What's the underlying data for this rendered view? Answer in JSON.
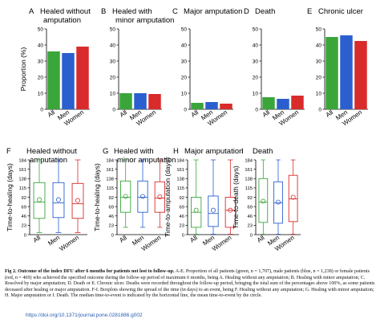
{
  "colors": {
    "all": "#3aa63a",
    "men": "#2b5fcf",
    "women": "#d92b2b"
  },
  "groups": [
    "All",
    "Men",
    "Women"
  ],
  "chart_data": [
    {
      "type": "bar",
      "letter": "A",
      "title": "Healed without amputation",
      "categories": [
        "All",
        "Men",
        "Women"
      ],
      "values": [
        36,
        35,
        39
      ],
      "ylabel": "Proportion (%)",
      "ylim": [
        0,
        50
      ],
      "yticks": [
        0,
        10,
        20,
        30,
        40,
        50
      ]
    },
    {
      "type": "bar",
      "letter": "B",
      "title": "Healed with minor amputation",
      "categories": [
        "All",
        "Men",
        "Women"
      ],
      "values": [
        10,
        10,
        9.5
      ],
      "ylabel": "",
      "ylim": [
        0,
        50
      ],
      "yticks": [
        0,
        10,
        20,
        30,
        40,
        50
      ]
    },
    {
      "type": "bar",
      "letter": "C",
      "title": "Major amputation",
      "categories": [
        "All",
        "Men",
        "Women"
      ],
      "values": [
        4,
        4.5,
        3.5
      ],
      "ylabel": "",
      "ylim": [
        0,
        50
      ],
      "yticks": [
        0,
        10,
        20,
        30,
        40,
        50
      ]
    },
    {
      "type": "bar",
      "letter": "D",
      "title": "Death",
      "categories": [
        "All",
        "Men",
        "Women"
      ],
      "values": [
        7.5,
        6.5,
        8.5
      ],
      "ylabel": "",
      "ylim": [
        0,
        50
      ],
      "yticks": [
        0,
        10,
        20,
        30,
        40,
        50
      ]
    },
    {
      "type": "bar",
      "letter": "E",
      "title": "Chronic ulcer",
      "categories": [
        "All",
        "Men",
        "Women"
      ],
      "values": [
        45,
        46,
        42.5
      ],
      "ylabel": "",
      "ylim": [
        0,
        50
      ],
      "yticks": [
        0,
        10,
        20,
        30,
        40,
        50
      ]
    },
    {
      "type": "box",
      "letter": "F",
      "title": "Healed without amputation",
      "categories": [
        "All",
        "Men",
        "Women"
      ],
      "ylabel": "Time-to-healing (days)",
      "ylim": [
        0,
        184
      ],
      "yticks": [
        0,
        23,
        46,
        69,
        92,
        115,
        138,
        161,
        184
      ],
      "boxes": [
        {
          "min": 5,
          "q1": 40,
          "median": 80,
          "q3": 128,
          "max": 184,
          "mean": 86
        },
        {
          "min": 5,
          "q1": 42,
          "median": 78,
          "q3": 128,
          "max": 184,
          "mean": 86
        },
        {
          "min": 5,
          "q1": 40,
          "median": 76,
          "q3": 126,
          "max": 184,
          "mean": 84
        }
      ]
    },
    {
      "type": "box",
      "letter": "G",
      "title": "Healed with minor amputation",
      "categories": [
        "All",
        "Men",
        "Women"
      ],
      "ylabel": "Time-to-healing (days)",
      "ylim": [
        0,
        184
      ],
      "yticks": [
        0,
        23,
        46,
        69,
        92,
        115,
        138,
        161,
        184
      ],
      "boxes": [
        {
          "min": 18,
          "q1": 55,
          "median": 92,
          "q3": 132,
          "max": 184,
          "mean": 94
        },
        {
          "min": 18,
          "q1": 55,
          "median": 92,
          "q3": 132,
          "max": 184,
          "mean": 94
        },
        {
          "min": 18,
          "q1": 55,
          "median": 90,
          "q3": 130,
          "max": 184,
          "mean": 93
        }
      ]
    },
    {
      "type": "box",
      "letter": "H",
      "title": "Major amputation",
      "categories": [
        "All",
        "Men",
        "Women"
      ],
      "ylabel": "Time-to-amputation (days)",
      "ylim": [
        0,
        184
      ],
      "yticks": [
        0,
        23,
        46,
        69,
        92,
        115,
        138,
        161,
        184
      ],
      "boxes": [
        {
          "min": 1,
          "q1": 18,
          "median": 55,
          "q3": 92,
          "max": 184,
          "mean": 60
        },
        {
          "min": 1,
          "q1": 20,
          "median": 52,
          "q3": 95,
          "max": 184,
          "mean": 60
        },
        {
          "min": 1,
          "q1": 18,
          "median": 60,
          "q3": 92,
          "max": 184,
          "mean": 60
        }
      ]
    },
    {
      "type": "box",
      "letter": "I",
      "title": "Death",
      "categories": [
        "All",
        "Men",
        "Women"
      ],
      "ylabel": "Time-to-death (days)",
      "ylim": [
        0,
        184
      ],
      "yticks": [
        0,
        23,
        46,
        69,
        92,
        115,
        138,
        161,
        184
      ],
      "boxes": [
        {
          "min": 1,
          "q1": 30,
          "median": 80,
          "q3": 138,
          "max": 184,
          "mean": 82
        },
        {
          "min": 1,
          "q1": 28,
          "median": 78,
          "q3": 130,
          "max": 184,
          "mean": 80
        },
        {
          "min": 1,
          "q1": 32,
          "median": 88,
          "q3": 146,
          "max": 184,
          "mean": 92
        }
      ]
    }
  ],
  "caption": {
    "label": "Fig 2. Outcome of the index DFU after 6 months for patients not lost to follow-up.",
    "text": "A-E. Proportion of all patients (green, n = 1,707), male patients (blue, n = 1,238) or female patients (red, n = 469) who achieved the specified outcome during the follow-up period of maximum 6 months, being A. Healing without any amputation; B. Healing with minor amputation; C. Resolved by major amputation; D. Death or E. Chronic ulcer. Deaths were recorded throughout the follow-up period, bringing the total sum of the percentages above 100%, as some patients deceased after healing or major amputation. F-I. Boxplots showing the spread of the time (in days) to an event, being F. Healing without any amputation; G. Healing with minor amputation; H. Major amputation or I. Death. The median time-to-event is indicated by the horizontal line, the mean time-to-event by the circle."
  },
  "doi": "https://doi.org/10.1371/journal.pone.0281886.g002"
}
